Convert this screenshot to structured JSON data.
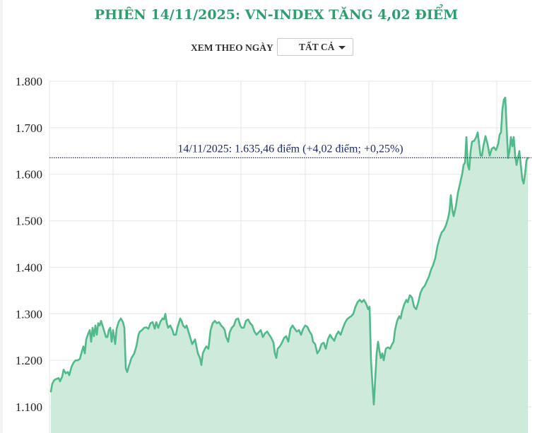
{
  "header": {
    "title": "PHIÊN 14/11/2025: VN-INDEX TĂNG 4,02 ĐIỂM"
  },
  "filter": {
    "label": "XEM THEO NGÀY",
    "selected": "TẤT CẢ"
  },
  "colors": {
    "title": "#2f9e6e",
    "line": "#52b98a",
    "area": "#cdeadb",
    "grid": "#e6e6e6",
    "reference_line": "#1f2a6b",
    "annotation_text": "#1f2a6b"
  },
  "annotation": {
    "text": "14/11/2025: 1.635,46 điểm (+4,02 điểm; +0,25%)",
    "value": 1635.46
  },
  "chart_data": {
    "type": "area",
    "title": "PHIÊN 14/11/2025: VN-INDEX TĂNG 4,02 ĐIỂM",
    "xlabel": "",
    "ylabel": "",
    "ylim": [
      1050,
      1800
    ],
    "yticks": [
      1800,
      1700,
      1600,
      1500,
      1400,
      1300,
      1200,
      1100
    ],
    "ytick_labels": [
      "1.800",
      "1.700",
      "1.600",
      "1.500",
      "1.400",
      "1.300",
      "1.200",
      "1.100"
    ],
    "grid": true,
    "legend": null,
    "reference_line": {
      "value": 1635.46,
      "style": "dotted",
      "label": "14/11/2025: 1.635,46 điểm (+4,02 điểm; +0,25%)"
    },
    "series": [
      {
        "name": "VN-INDEX",
        "note": "x = horizontal pixel position across plot (70–748); no date axis labels are visible",
        "points": [
          [
            72,
            1133
          ],
          [
            74,
            1150
          ],
          [
            77,
            1158
          ],
          [
            80,
            1160
          ],
          [
            83,
            1162
          ],
          [
            85,
            1155
          ],
          [
            88,
            1165
          ],
          [
            90,
            1180
          ],
          [
            93,
            1172
          ],
          [
            96,
            1175
          ],
          [
            98,
            1168
          ],
          [
            101,
            1185
          ],
          [
            104,
            1195
          ],
          [
            107,
            1200
          ],
          [
            110,
            1200
          ],
          [
            113,
            1203
          ],
          [
            116,
            1220
          ],
          [
            118,
            1230
          ],
          [
            120,
            1215
          ],
          [
            122,
            1245
          ],
          [
            125,
            1258
          ],
          [
            127,
            1265
          ],
          [
            129,
            1240
          ],
          [
            131,
            1270
          ],
          [
            133,
            1252
          ],
          [
            135,
            1275
          ],
          [
            137,
            1255
          ],
          [
            139,
            1280
          ],
          [
            141,
            1275
          ],
          [
            143,
            1285
          ],
          [
            145,
            1275
          ],
          [
            148,
            1260
          ],
          [
            150,
            1250
          ],
          [
            152,
            1250
          ],
          [
            154,
            1265
          ],
          [
            156,
            1270
          ],
          [
            158,
            1240
          ],
          [
            160,
            1265
          ],
          [
            163,
            1235
          ],
          [
            165,
            1268
          ],
          [
            168,
            1283
          ],
          [
            171,
            1290
          ],
          [
            174,
            1282
          ],
          [
            176,
            1270
          ],
          [
            178,
            1183
          ],
          [
            180,
            1175
          ],
          [
            182,
            1186
          ],
          [
            184,
            1195
          ],
          [
            186,
            1205
          ],
          [
            188,
            1210
          ],
          [
            190,
            1215
          ],
          [
            193,
            1230
          ],
          [
            196,
            1255
          ],
          [
            198,
            1262
          ],
          [
            201,
            1265
          ],
          [
            204,
            1270
          ],
          [
            207,
            1271
          ],
          [
            210,
            1268
          ],
          [
            213,
            1280
          ],
          [
            216,
            1282
          ],
          [
            219,
            1268
          ],
          [
            221,
            1282
          ],
          [
            224,
            1270
          ],
          [
            227,
            1283
          ],
          [
            230,
            1290
          ],
          [
            232,
            1288
          ],
          [
            234,
            1300
          ],
          [
            236,
            1280
          ],
          [
            238,
            1270
          ],
          [
            241,
            1275
          ],
          [
            244,
            1265
          ],
          [
            246,
            1255
          ],
          [
            249,
            1255
          ],
          [
            251,
            1270
          ],
          [
            253,
            1280
          ],
          [
            255,
            1290
          ],
          [
            257,
            1285
          ],
          [
            259,
            1275
          ],
          [
            262,
            1270
          ],
          [
            264,
            1275
          ],
          [
            266,
            1265
          ],
          [
            268,
            1255
          ],
          [
            270,
            1245
          ],
          [
            272,
            1235
          ],
          [
            274,
            1240
          ],
          [
            276,
            1245
          ],
          [
            278,
            1230
          ],
          [
            280,
            1215
          ],
          [
            283,
            1205
          ],
          [
            285,
            1190
          ],
          [
            287,
            1215
          ],
          [
            290,
            1225
          ],
          [
            292,
            1230
          ],
          [
            295,
            1225
          ],
          [
            298,
            1265
          ],
          [
            301,
            1280
          ],
          [
            304,
            1285
          ],
          [
            307,
            1280
          ],
          [
            310,
            1282
          ],
          [
            313,
            1275
          ],
          [
            316,
            1270
          ],
          [
            318,
            1265
          ],
          [
            320,
            1250
          ],
          [
            323,
            1240
          ],
          [
            325,
            1260
          ],
          [
            328,
            1270
          ],
          [
            331,
            1275
          ],
          [
            334,
            1288
          ],
          [
            337,
            1290
          ],
          [
            340,
            1275
          ],
          [
            342,
            1270
          ],
          [
            345,
            1270
          ],
          [
            348,
            1285
          ],
          [
            351,
            1288
          ],
          [
            354,
            1280
          ],
          [
            357,
            1275
          ],
          [
            360,
            1262
          ],
          [
            363,
            1255
          ],
          [
            366,
            1260
          ],
          [
            369,
            1265
          ],
          [
            372,
            1250
          ],
          [
            375,
            1258
          ],
          [
            378,
            1262
          ],
          [
            381,
            1255
          ],
          [
            384,
            1248
          ],
          [
            387,
            1238
          ],
          [
            389,
            1215
          ],
          [
            391,
            1205
          ],
          [
            393,
            1225
          ],
          [
            396,
            1230
          ],
          [
            399,
            1238
          ],
          [
            402,
            1248
          ],
          [
            405,
            1252
          ],
          [
            408,
            1240
          ],
          [
            411,
            1268
          ],
          [
            414,
            1275
          ],
          [
            417,
            1268
          ],
          [
            420,
            1262
          ],
          [
            423,
            1265
          ],
          [
            426,
            1255
          ],
          [
            429,
            1268
          ],
          [
            432,
            1275
          ],
          [
            435,
            1272
          ],
          [
            438,
            1262
          ],
          [
            441,
            1255
          ],
          [
            443,
            1240
          ],
          [
            446,
            1235
          ],
          [
            449,
            1215
          ],
          [
            452,
            1222
          ],
          [
            455,
            1235
          ],
          [
            458,
            1238
          ],
          [
            461,
            1225
          ],
          [
            464,
            1245
          ],
          [
            467,
            1255
          ],
          [
            470,
            1248
          ],
          [
            473,
            1242
          ],
          [
            476,
            1255
          ],
          [
            479,
            1262
          ],
          [
            482,
            1255
          ],
          [
            485,
            1268
          ],
          [
            488,
            1280
          ],
          [
            491,
            1288
          ],
          [
            494,
            1292
          ],
          [
            497,
            1295
          ],
          [
            500,
            1300
          ],
          [
            503,
            1315
          ],
          [
            506,
            1325
          ],
          [
            509,
            1330
          ],
          [
            512,
            1325
          ],
          [
            515,
            1330
          ],
          [
            518,
            1322
          ],
          [
            521,
            1310
          ],
          [
            523,
            1315
          ],
          [
            525,
            1200
          ],
          [
            527,
            1150
          ],
          [
            529,
            1105
          ],
          [
            531,
            1160
          ],
          [
            533,
            1215
          ],
          [
            535,
            1240
          ],
          [
            537,
            1220
          ],
          [
            539,
            1205
          ],
          [
            541,
            1215
          ],
          [
            543,
            1200
          ],
          [
            546,
            1225
          ],
          [
            549,
            1228
          ],
          [
            552,
            1225
          ],
          [
            555,
            1235
          ],
          [
            557,
            1240
          ],
          [
            559,
            1265
          ],
          [
            562,
            1285
          ],
          [
            565,
            1295
          ],
          [
            567,
            1290
          ],
          [
            569,
            1305
          ],
          [
            572,
            1320
          ],
          [
            575,
            1330
          ],
          [
            577,
            1325
          ],
          [
            580,
            1340
          ],
          [
            583,
            1335
          ],
          [
            586,
            1315
          ],
          [
            589,
            1310
          ],
          [
            592,
            1325
          ],
          [
            595,
            1345
          ],
          [
            598,
            1355
          ],
          [
            601,
            1360
          ],
          [
            604,
            1370
          ],
          [
            607,
            1380
          ],
          [
            610,
            1395
          ],
          [
            613,
            1405
          ],
          [
            616,
            1420
          ],
          [
            619,
            1445
          ],
          [
            622,
            1462
          ],
          [
            625,
            1475
          ],
          [
            628,
            1480
          ],
          [
            631,
            1490
          ],
          [
            634,
            1505
          ],
          [
            636,
            1520
          ],
          [
            638,
            1555
          ],
          [
            640,
            1525
          ],
          [
            642,
            1510
          ],
          [
            645,
            1530
          ],
          [
            648,
            1560
          ],
          [
            651,
            1580
          ],
          [
            654,
            1600
          ],
          [
            656,
            1620
          ],
          [
            658,
            1625
          ],
          [
            660,
            1680
          ],
          [
            662,
            1620
          ],
          [
            664,
            1610
          ],
          [
            666,
            1650
          ],
          [
            668,
            1670
          ],
          [
            671,
            1672
          ],
          [
            674,
            1680
          ],
          [
            676,
            1690
          ],
          [
            678,
            1665
          ],
          [
            680,
            1640
          ],
          [
            682,
            1640
          ],
          [
            684,
            1660
          ],
          [
            687,
            1682
          ],
          [
            690,
            1665
          ],
          [
            693,
            1640
          ],
          [
            696,
            1655
          ],
          [
            699,
            1658
          ],
          [
            702,
            1652
          ],
          [
            705,
            1665
          ],
          [
            707,
            1685
          ],
          [
            709,
            1690
          ],
          [
            711,
            1740
          ],
          [
            713,
            1760
          ],
          [
            715,
            1765
          ],
          [
            717,
            1700
          ],
          [
            719,
            1635
          ],
          [
            721,
            1650
          ],
          [
            723,
            1680
          ],
          [
            725,
            1660
          ],
          [
            727,
            1680
          ],
          [
            729,
            1640
          ],
          [
            731,
            1620
          ],
          [
            733,
            1635
          ],
          [
            735,
            1650
          ],
          [
            737,
            1620
          ],
          [
            739,
            1590
          ],
          [
            741,
            1580
          ],
          [
            743,
            1600
          ],
          [
            745,
            1630
          ],
          [
            747,
            1635
          ]
        ]
      }
    ]
  }
}
